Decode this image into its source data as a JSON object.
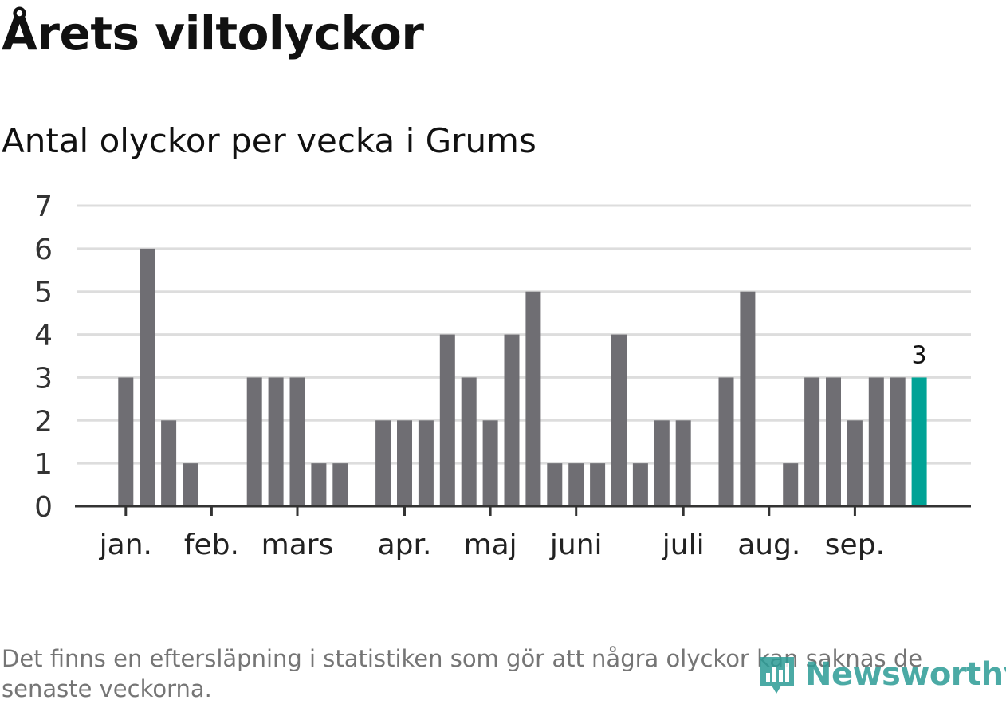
{
  "chart_data": {
    "type": "bar",
    "title": "Årets viltolyckor",
    "subtitle": "Antal olyckor per vecka i Grums",
    "ylim": [
      0,
      7
    ],
    "yticks": [
      0,
      1,
      2,
      3,
      4,
      5,
      6,
      7
    ],
    "grid": true,
    "week_start": 1,
    "values": [
      0,
      0,
      3,
      6,
      2,
      1,
      0,
      0,
      3,
      3,
      3,
      1,
      1,
      0,
      2,
      2,
      2,
      4,
      3,
      2,
      4,
      5,
      1,
      1,
      1,
      4,
      1,
      2,
      2,
      0,
      3,
      5,
      0,
      1,
      3,
      3,
      2,
      3,
      3,
      3
    ],
    "month_labels": [
      {
        "label": "jan.",
        "week": 3
      },
      {
        "label": "feb.",
        "week": 7
      },
      {
        "label": "mars",
        "week": 11
      },
      {
        "label": "apr.",
        "week": 16
      },
      {
        "label": "maj",
        "week": 20
      },
      {
        "label": "juni",
        "week": 24
      },
      {
        "label": "juli",
        "week": 29
      },
      {
        "label": "aug.",
        "week": 33
      },
      {
        "label": "sep.",
        "week": 37
      }
    ],
    "highlight_index": 39,
    "highlight_label": "3",
    "colors": {
      "bar": "#6f6e73",
      "highlight": "#00a396",
      "grid": "#dddddd",
      "axis": "#333333"
    }
  },
  "footer": {
    "note": "Det finns en eftersläpning i statistiken som gör att några olyckor kan saknas de senaste veckorna.",
    "brand": "Newsworthy",
    "brand_icon": "newsworthy-logo-icon"
  }
}
